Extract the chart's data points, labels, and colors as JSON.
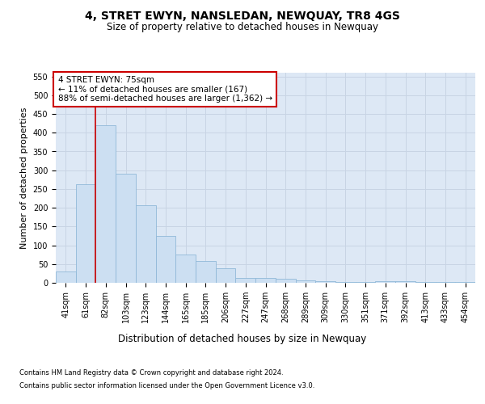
{
  "title": "4, STRET EWYN, NANSLEDAN, NEWQUAY, TR8 4GS",
  "subtitle": "Size of property relative to detached houses in Newquay",
  "xlabel": "Distribution of detached houses by size in Newquay",
  "ylabel": "Number of detached properties",
  "categories": [
    "41sqm",
    "61sqm",
    "82sqm",
    "103sqm",
    "123sqm",
    "144sqm",
    "165sqm",
    "185sqm",
    "206sqm",
    "227sqm",
    "247sqm",
    "268sqm",
    "289sqm",
    "309sqm",
    "330sqm",
    "351sqm",
    "371sqm",
    "392sqm",
    "413sqm",
    "433sqm",
    "454sqm"
  ],
  "values": [
    30,
    263,
    420,
    290,
    207,
    125,
    75,
    58,
    38,
    13,
    13,
    10,
    7,
    5,
    2,
    2,
    5,
    5,
    2,
    2,
    2
  ],
  "bar_color": "#ccdff2",
  "bar_edge_color": "#90b8d8",
  "grid_color": "#c8d4e4",
  "background_color": "#dde8f5",
  "annotation_box_text": "4 STRET EWYN: 75sqm\n← 11% of detached houses are smaller (167)\n88% of semi-detached houses are larger (1,362) →",
  "annotation_box_color": "#ffffff",
  "annotation_box_edge_color": "#cc0000",
  "red_line_x": 1.5,
  "ylim": [
    0,
    560
  ],
  "yticks": [
    0,
    50,
    100,
    150,
    200,
    250,
    300,
    350,
    400,
    450,
    500,
    550
  ],
  "footer_line1": "Contains HM Land Registry data © Crown copyright and database right 2024.",
  "footer_line2": "Contains public sector information licensed under the Open Government Licence v3.0.",
  "title_fontsize": 10,
  "subtitle_fontsize": 8.5,
  "xlabel_fontsize": 8.5,
  "ylabel_fontsize": 8,
  "tick_fontsize": 7,
  "annotation_fontsize": 7.5,
  "footer_fontsize": 6
}
